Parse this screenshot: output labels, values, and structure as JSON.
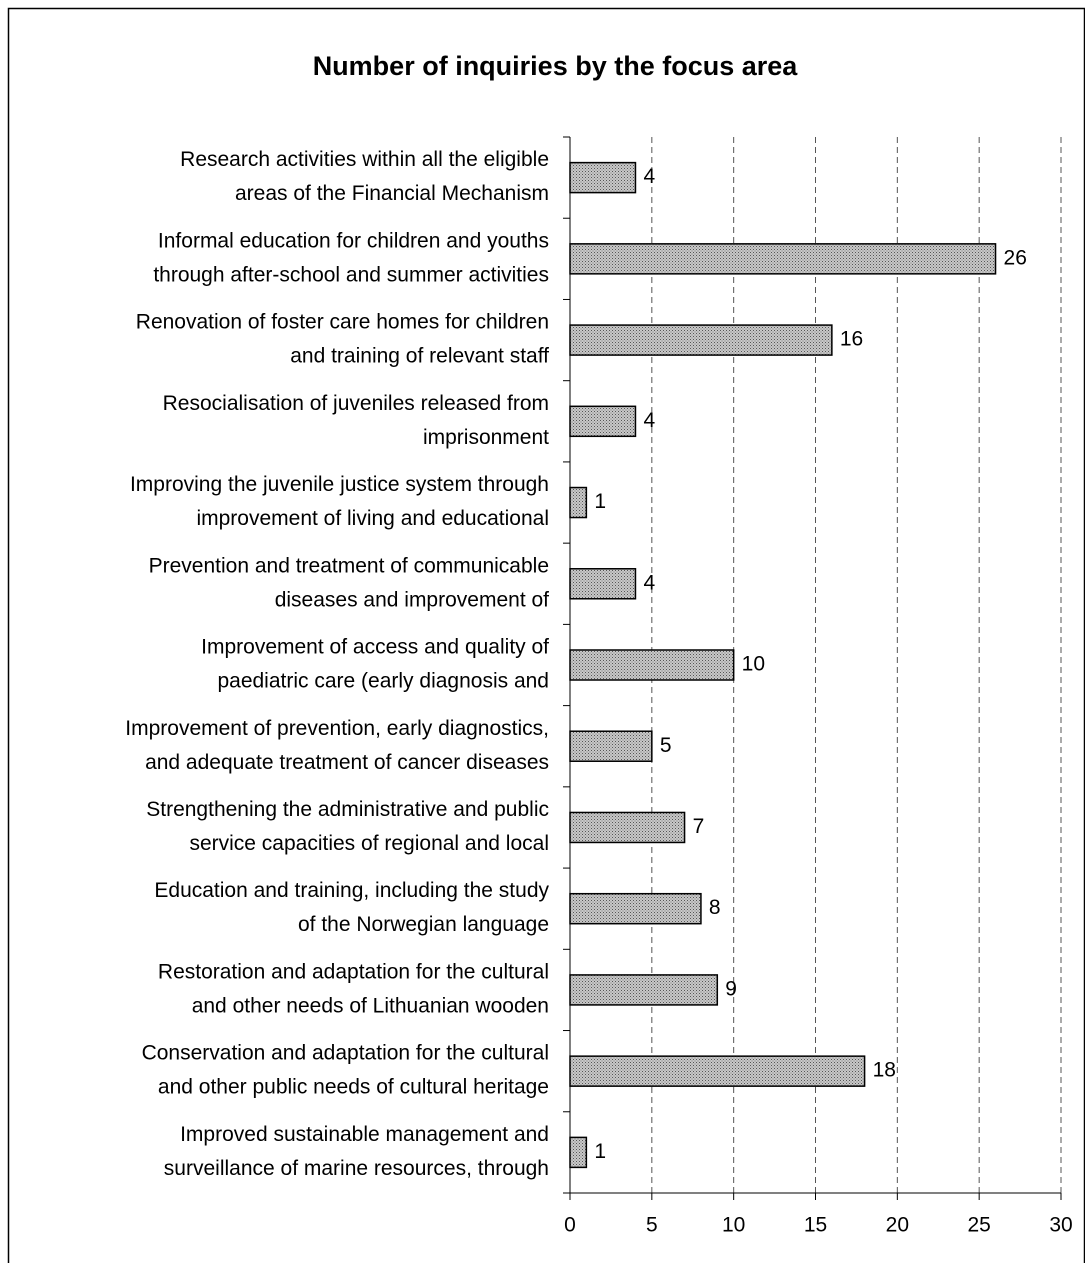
{
  "chart_data": {
    "type": "bar",
    "orientation": "horizontal",
    "title": "Number of inquiries by the focus area",
    "categories": [
      [
        "Research activities within all the eligible",
        "areas of the Financial Mechanism"
      ],
      [
        "Informal education for children and youths",
        "through after-school and summer activities"
      ],
      [
        "Renovation of foster care homes for children",
        "and training of relevant staff"
      ],
      [
        "Resocialisation of juveniles released from",
        "imprisonment"
      ],
      [
        "Improving the juvenile justice system through",
        "improvement of living and educational"
      ],
      [
        "Prevention and treatment of communicable",
        "diseases and improvement of"
      ],
      [
        "Improvement of access and quality of",
        "paediatric care (early diagnosis and"
      ],
      [
        "Improvement of prevention, early diagnostics,",
        "and adequate treatment of  cancer diseases"
      ],
      [
        "Strengthening the administrative and public",
        "service capacities of regional and local"
      ],
      [
        "Education and training, including the study",
        "of the Norwegian language"
      ],
      [
        "Restoration and adaptation for the cultural",
        "and other needs of Lithuanian wooden"
      ],
      [
        "Conservation and adaptation for the cultural",
        "and other public needs of cultural heritage"
      ],
      [
        "Improved sustainable management and",
        "surveillance of marine resources, through"
      ]
    ],
    "values": [
      4,
      26,
      16,
      4,
      1,
      4,
      10,
      5,
      7,
      8,
      9,
      18,
      1
    ],
    "color": "#c8c8c8",
    "xlim": [
      0,
      30
    ],
    "xticks": [
      0,
      5,
      10,
      15,
      20,
      25,
      30
    ],
    "grid": true
  }
}
